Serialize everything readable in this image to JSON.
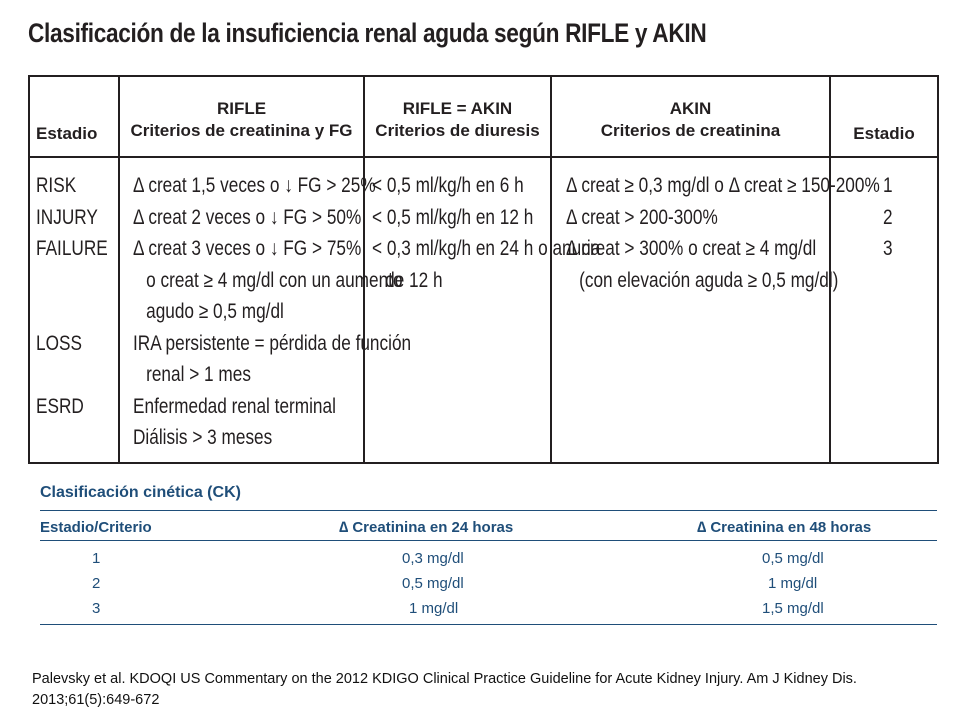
{
  "title": "Clasificación de la insuficiencia renal aguda según RIFLE y AKIN",
  "rifle_table": {
    "headers": {
      "estadio_left": "Estadio",
      "rifle_line1": "RIFLE",
      "rifle_line2": "Criterios de creatinina y FG",
      "rifle_akin_line1": "RIFLE = AKIN",
      "rifle_akin_line2": "Criterios de diuresis",
      "akin_line1": "AKIN",
      "akin_line2": "Criterios de creatinina",
      "estadio_right": "Estadio"
    },
    "stages": [
      "RISK",
      "INJURY",
      "FAILURE",
      "LOSS",
      "ESRD"
    ],
    "rifle_criteria": [
      "Δ creat 1,5 veces o ↓ FG > 25%",
      "Δ creat 2 veces o ↓ FG > 50%",
      "Δ creat 3 veces o ↓ FG > 75%",
      "o creat ≥ 4 mg/dl con un aumento",
      "agudo ≥ 0,5 mg/dl",
      "IRA persistente = pérdida de función",
      "renal > 1 mes",
      "Enfermedad renal terminal",
      "Diálisis > 3 meses"
    ],
    "diuresis_criteria": [
      "< 0,5 ml/kg/h en 6 h",
      "< 0,5 ml/kg/h en 12 h",
      "< 0,3 ml/kg/h en 24 h o anuria",
      "de 12 h"
    ],
    "akin_criteria": [
      "Δ creat ≥ 0,3 mg/dl o Δ creat ≥ 150-200%",
      "Δ creat > 200-300%",
      "Δ creat > 300% o creat ≥ 4 mg/dl",
      "(con elevación aguda ≥ 0,5 mg/dl)"
    ],
    "akin_stages": [
      "1",
      "2",
      "3"
    ]
  },
  "ck_table": {
    "title": "Clasificación cinética (CK)",
    "headers": [
      "Estadio/Criterio",
      "∆ Creatinina en 24 horas",
      "∆ Creatinina en 48 horas"
    ],
    "rows": [
      [
        "1",
        "0,3 mg/dl",
        "0,5 mg/dl"
      ],
      [
        "2",
        "0,5 mg/dl",
        "1 mg/dl"
      ],
      [
        "3",
        "1 mg/dl",
        "1,5 mg/dl"
      ]
    ]
  },
  "citation": "Palevsky et al. KDOQI US Commentary on the 2012 KDIGO Clinical Practice Guideline for Acute Kidney Injury. Am J Kidney Dis. 2013;61(5):649-672"
}
